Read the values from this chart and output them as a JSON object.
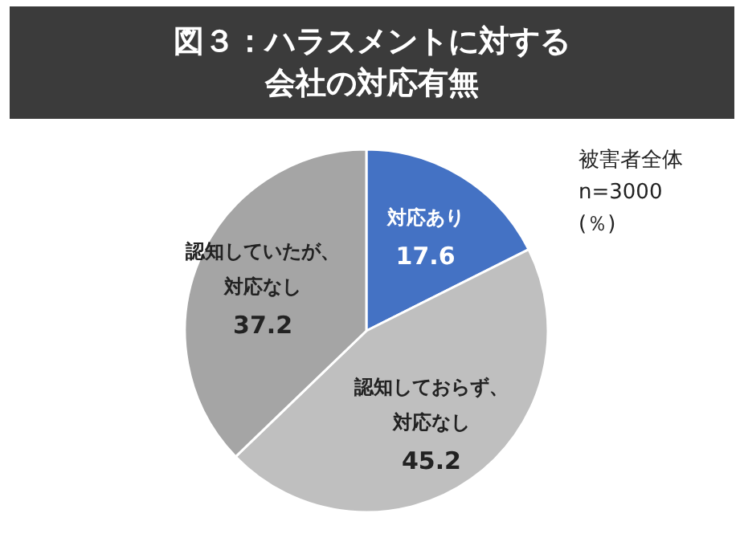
{
  "chart_data": {
    "type": "pie",
    "title": "図３：ハラスメントに対する会社の対応有無",
    "categories": [
      "対応あり",
      "認知しておらず、対応なし",
      "認知していたが、対応なし"
    ],
    "values": [
      17.6,
      45.2,
      37.2
    ],
    "colors": [
      "#4472c4",
      "#bfbfbf",
      "#a5a5a5"
    ],
    "data_labels": true,
    "annotations": [
      "被害者全体",
      "n=3000",
      "(％)"
    ]
  }
}
